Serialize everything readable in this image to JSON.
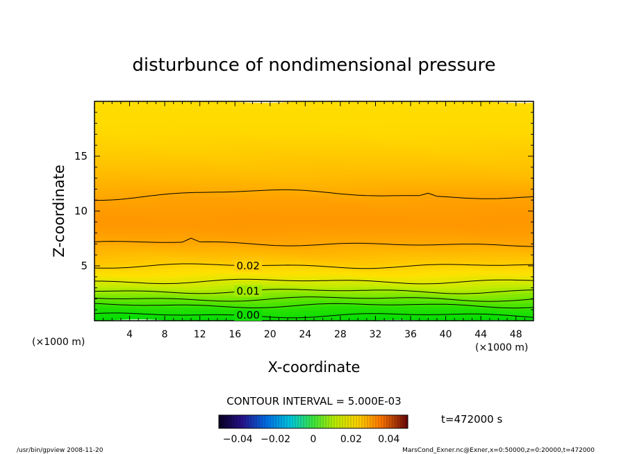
{
  "chart_data": {
    "type": "heatmap",
    "title": "disturbunce of nondimensional pressure",
    "xlabel": "X-coordinate",
    "ylabel": "Z-coordinate",
    "x_unit": "(×1000 m)",
    "y_unit": "(×1000 m)",
    "xlim": [
      0,
      50
    ],
    "ylim": [
      0,
      20
    ],
    "x_ticks": [
      4,
      8,
      12,
      16,
      20,
      24,
      28,
      32,
      36,
      40,
      44,
      48
    ],
    "y_ticks": [
      5,
      10,
      15
    ],
    "contour_interval_text": "CONTOUR INTERVAL = 5.000E-03",
    "contour_labels": [
      {
        "text": "0.02",
        "x": 17.5,
        "z": 5.0
      },
      {
        "text": "0.01",
        "x": 17.5,
        "z": 2.7
      },
      {
        "text": "0.00",
        "x": 17.5,
        "z": 0.5
      }
    ],
    "contour_levels_z": [
      0.5,
      1.4,
      2.0,
      2.7,
      3.6,
      5.0,
      7.0,
      11.5
    ],
    "colorbar": {
      "ticks": [
        "−0.04",
        "−0.02",
        "0",
        "0.02",
        "0.04"
      ],
      "range": [
        -0.05,
        0.05
      ]
    },
    "time_label": "t=472000 s"
  },
  "footer": {
    "left": "/usr/bin/gpview   2008-11-20",
    "right": "MarsCond_Exner.nc@Exner,x=0:50000,z=0:20000,t=472000"
  },
  "colors": {
    "frame": "#000000",
    "top": "#ffdd00",
    "middle": "#ff9a00",
    "bottom": "#00e000"
  }
}
